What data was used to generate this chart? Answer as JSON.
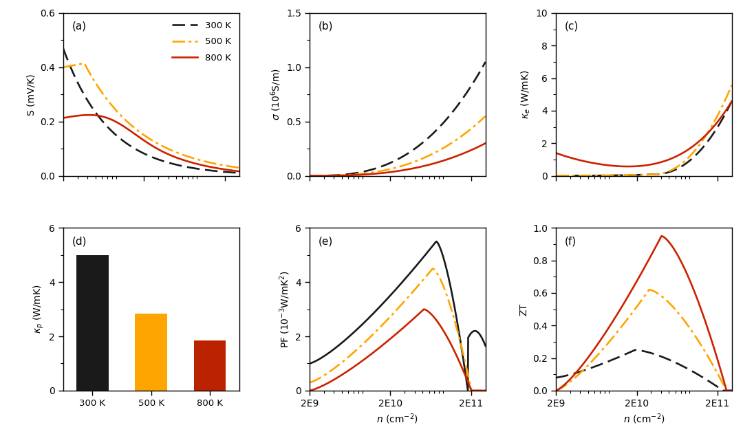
{
  "temperatures": [
    "300 K",
    "500 K",
    "800 K"
  ],
  "colors_300": "#1a1a1a",
  "colors_500": "#FFA500",
  "colors_800": "#CC2200",
  "bar_colors": [
    "#1a1a1a",
    "#FFA500",
    "#BB2200"
  ],
  "kappa_p_values": [
    5.0,
    2.85,
    1.85
  ],
  "panel_labels": [
    "(a)",
    "(b)",
    "(c)",
    "(d)",
    "(e)",
    "(f)"
  ],
  "S_ylim": [
    0,
    0.6
  ],
  "sigma_ylim": [
    0,
    1.5
  ],
  "kappa_e_ylim": [
    0,
    10
  ],
  "PF_ylim": [
    0,
    6
  ],
  "ZT_ylim": [
    0,
    1
  ],
  "n_log_min": 9.301,
  "n_log_max": 11.477,
  "S_ylabel": "S (mV/K)",
  "sigma_ylabel": "$\\sigma$ (10$^6$S/m)",
  "kappa_e_ylabel": "$\\kappa_e$ (W/mK)",
  "kappa_p_ylabel": "$\\kappa_p$ (W/mK)",
  "PF_ylabel": "PF (10$^{-3}$W/mK$^2$)",
  "ZT_ylabel": "ZT",
  "xlabel_n": "$n$ (cm$^{-2}$)"
}
